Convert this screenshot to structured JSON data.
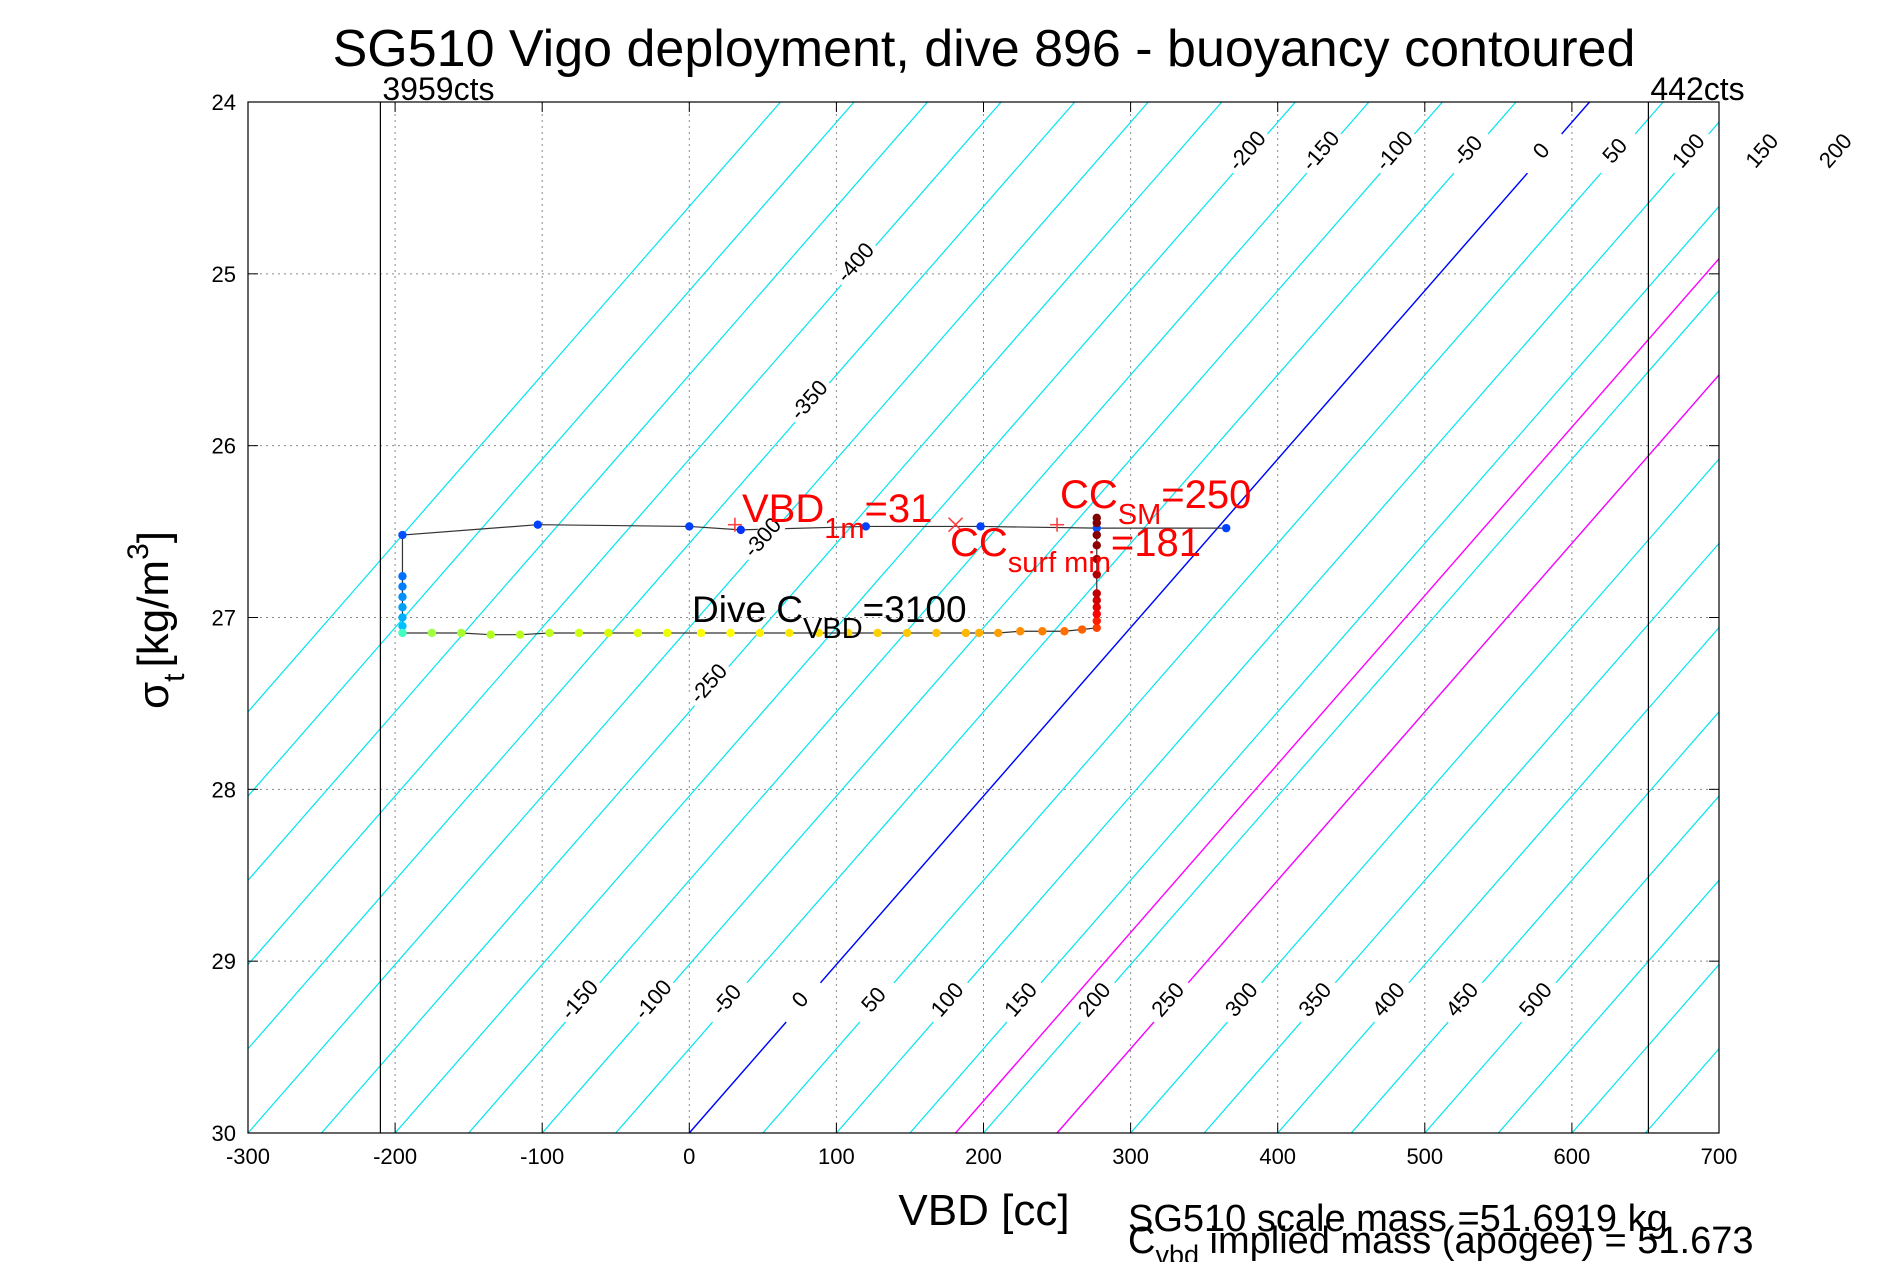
{
  "chart_data": {
    "type": "scatter",
    "title": "SG510 Vigo deployment, dive 896 - buoyancy contoured",
    "xlabel": "VBD [cc]",
    "ylabel_main": "σ",
    "ylabel_sub": "t",
    "ylabel_unit": "[kg/m",
    "ylabel_sup": "3",
    "ylabel_close": "]",
    "xlim": [
      -300,
      700
    ],
    "ylim": [
      30,
      24
    ],
    "xticks": [
      "-300",
      "-200",
      "-100",
      "0",
      "100",
      "200",
      "300",
      "400",
      "500",
      "600",
      "700"
    ],
    "yticks": [
      "24",
      "25",
      "26",
      "27",
      "28",
      "29",
      "30"
    ],
    "grid": true,
    "vertical_limits": [
      {
        "x": -210,
        "label": "3959cts"
      },
      {
        "x": 652,
        "label": "442cts"
      }
    ],
    "contour_levels": [
      -550,
      -500,
      -450,
      -400,
      -350,
      -300,
      -250,
      -200,
      -150,
      -100,
      -50,
      0,
      50,
      100,
      150,
      200,
      250,
      300,
      350,
      400,
      450,
      500,
      550,
      600,
      650,
      700,
      750,
      800,
      850
    ],
    "contour_slope_cc_per_sigma": 102,
    "contour_reference_sigma": 30,
    "top_contour_labels": [
      "-400",
      "-350",
      "-300",
      "-250",
      "-200",
      "-150",
      "-100",
      "-50",
      "0",
      "50",
      "100",
      "150",
      "200",
      "250",
      "300",
      "350",
      "400",
      "450",
      "500"
    ],
    "bottom_contour_labels": [
      "-150",
      "-100",
      "-50",
      "0",
      "50",
      "100",
      "150",
      "200",
      "250",
      "300",
      "350",
      "400",
      "450",
      "500"
    ],
    "highlight_lines": [
      {
        "name": "zero buoyancy",
        "level": 0,
        "color": "#0000ff"
      },
      {
        "name": "CC_surf_min",
        "level": 181,
        "color": "#ff00ff"
      },
      {
        "name": "CC_SM",
        "level": 250,
        "color": "#ff00ff"
      }
    ],
    "trajectory": [
      {
        "x": 365,
        "y": 26.48,
        "c": "#0040ff"
      },
      {
        "x": 277,
        "y": 26.48,
        "c": "#0050ff"
      },
      {
        "x": 198,
        "y": 26.47,
        "c": "#0040ff"
      },
      {
        "x": 120,
        "y": 26.47,
        "c": "#0040ff"
      },
      {
        "x": 35,
        "y": 26.49,
        "c": "#0030ff"
      },
      {
        "x": 0,
        "y": 26.47,
        "c": "#0040ff"
      },
      {
        "x": -103,
        "y": 26.46,
        "c": "#0040ff"
      },
      {
        "x": -195,
        "y": 26.52,
        "c": "#0050ff"
      },
      {
        "x": -195,
        "y": 26.76,
        "c": "#0070ff"
      },
      {
        "x": -195,
        "y": 26.82,
        "c": "#0080ff"
      },
      {
        "x": -195,
        "y": 26.88,
        "c": "#0090ff"
      },
      {
        "x": -195,
        "y": 26.94,
        "c": "#00a0ff"
      },
      {
        "x": -195,
        "y": 27.0,
        "c": "#00b0ff"
      },
      {
        "x": -195,
        "y": 27.05,
        "c": "#00c0ff"
      },
      {
        "x": -195,
        "y": 27.09,
        "c": "#40ffc0"
      },
      {
        "x": -175,
        "y": 27.09,
        "c": "#a0ff40"
      },
      {
        "x": -155,
        "y": 27.09,
        "c": "#a8ff30"
      },
      {
        "x": -135,
        "y": 27.1,
        "c": "#b0ff20"
      },
      {
        "x": -115,
        "y": 27.1,
        "c": "#b8ff20"
      },
      {
        "x": -95,
        "y": 27.09,
        "c": "#c0ff20"
      },
      {
        "x": -75,
        "y": 27.09,
        "c": "#d0ff10"
      },
      {
        "x": -55,
        "y": 27.09,
        "c": "#d8ff00"
      },
      {
        "x": -35,
        "y": 27.09,
        "c": "#e0ff00"
      },
      {
        "x": -15,
        "y": 27.09,
        "c": "#ecff00"
      },
      {
        "x": 8,
        "y": 27.09,
        "c": "#ffff00"
      },
      {
        "x": 28,
        "y": 27.09,
        "c": "#ffff00"
      },
      {
        "x": 48,
        "y": 27.09,
        "c": "#fff000"
      },
      {
        "x": 68,
        "y": 27.09,
        "c": "#ffe800"
      },
      {
        "x": 88,
        "y": 27.09,
        "c": "#ffe000"
      },
      {
        "x": 108,
        "y": 27.09,
        "c": "#ffd800"
      },
      {
        "x": 128,
        "y": 27.09,
        "c": "#ffd000"
      },
      {
        "x": 148,
        "y": 27.09,
        "c": "#ffc800"
      },
      {
        "x": 168,
        "y": 27.09,
        "c": "#ffc000"
      },
      {
        "x": 188,
        "y": 27.09,
        "c": "#ffb800"
      },
      {
        "x": 197,
        "y": 27.09,
        "c": "#ffb000"
      },
      {
        "x": 210,
        "y": 27.09,
        "c": "#ffa000"
      },
      {
        "x": 225,
        "y": 27.08,
        "c": "#ff9000"
      },
      {
        "x": 240,
        "y": 27.08,
        "c": "#ff8000"
      },
      {
        "x": 255,
        "y": 27.08,
        "c": "#ff7000"
      },
      {
        "x": 267,
        "y": 27.07,
        "c": "#ff6000"
      },
      {
        "x": 277,
        "y": 27.06,
        "c": "#ff4000"
      },
      {
        "x": 277,
        "y": 27.02,
        "c": "#ff2000"
      },
      {
        "x": 277,
        "y": 26.98,
        "c": "#ff0000"
      },
      {
        "x": 277,
        "y": 26.94,
        "c": "#e00000"
      },
      {
        "x": 277,
        "y": 26.9,
        "c": "#d00000"
      },
      {
        "x": 277,
        "y": 26.86,
        "c": "#c00000"
      },
      {
        "x": 277,
        "y": 26.75,
        "c": "#b00000"
      },
      {
        "x": 277,
        "y": 26.66,
        "c": "#a00000"
      },
      {
        "x": 277,
        "y": 26.58,
        "c": "#900000"
      },
      {
        "x": 277,
        "y": 26.52,
        "c": "#880000"
      },
      {
        "x": 277,
        "y": 26.45,
        "c": "#800000"
      },
      {
        "x": 277,
        "y": 26.42,
        "c": "#800000"
      }
    ],
    "markers": [
      {
        "name": "VBD_1m",
        "x": 31,
        "y": 26.46,
        "symbol": "+",
        "color": "#ff4040"
      },
      {
        "name": "CC_surf_min",
        "x": 181,
        "y": 26.46,
        "symbol": "x",
        "color": "#ff4040"
      },
      {
        "name": "CC_SM",
        "x": 250,
        "y": 26.46,
        "symbol": "+",
        "color": "#ff4040"
      }
    ],
    "annotations": {
      "vbd1m_main": "VBD",
      "vbd1m_sub": "1m",
      "vbd1m_value": "=31",
      "ccsm_main": "CC",
      "ccsm_sub": "SM",
      "ccsm_value": "=250",
      "ccsurf_main": "CC",
      "ccsurf_sub": "surf min",
      "ccsurf_value": "=181",
      "dive_main": "Dive C",
      "dive_sub": "VBD",
      "dive_value": "=3100"
    },
    "footer": {
      "line1": "SG510 scale mass =51.6919 kg",
      "line2_main": "C",
      "line2_sub": "vbd",
      "line2_rest": " implied mass (apogee) = 51.673"
    }
  }
}
